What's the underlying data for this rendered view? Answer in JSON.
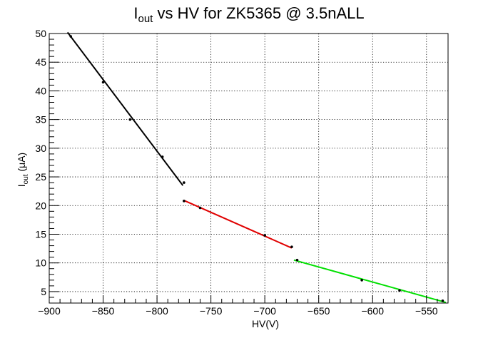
{
  "chart_data": {
    "type": "line",
    "title": {
      "main": "I",
      "sub": "out",
      "rest": " vs HV for ZK5365 @ 3.5nALL"
    },
    "xlabel": "HV(V)",
    "ylabel": {
      "main": "I",
      "sub": "out",
      "rest": " (μA)"
    },
    "xlim": [
      -900,
      -530
    ],
    "ylim": [
      3,
      50
    ],
    "grid": true,
    "x_ticks": [
      -900,
      -850,
      -800,
      -750,
      -700,
      -650,
      -600,
      -550
    ],
    "x_tick_labels": [
      "−900",
      "−850",
      "−800",
      "−750",
      "−700",
      "−650",
      "−600",
      "−550"
    ],
    "y_ticks": [
      5,
      10,
      15,
      20,
      25,
      30,
      35,
      40,
      45,
      50
    ],
    "y_tick_labels": [
      "5",
      "10",
      "15",
      "20",
      "25",
      "30",
      "35",
      "40",
      "45",
      "50"
    ],
    "series": [
      {
        "color": "#000000",
        "points": [
          [
            -880,
            49.5
          ],
          [
            -850,
            41.5
          ],
          [
            -825,
            35.0
          ],
          [
            -795,
            28.5
          ],
          [
            -775,
            24.0
          ]
        ],
        "fit": [
          [
            -883,
            50.2
          ],
          [
            -776,
            23.5
          ]
        ]
      },
      {
        "color": "#e00000",
        "points": [
          [
            -775,
            20.8
          ],
          [
            -760,
            19.6
          ],
          [
            -700,
            14.8
          ],
          [
            -675,
            12.8
          ]
        ],
        "fit": [
          [
            -775,
            20.9
          ],
          [
            -675,
            12.6
          ]
        ]
      },
      {
        "color": "#00e000",
        "points": [
          [
            -670,
            10.5
          ],
          [
            -610,
            7.0
          ],
          [
            -575,
            5.2
          ],
          [
            -535,
            3.4
          ]
        ],
        "fit": [
          [
            -673,
            10.5
          ],
          [
            -532,
            3.1
          ]
        ]
      }
    ]
  }
}
